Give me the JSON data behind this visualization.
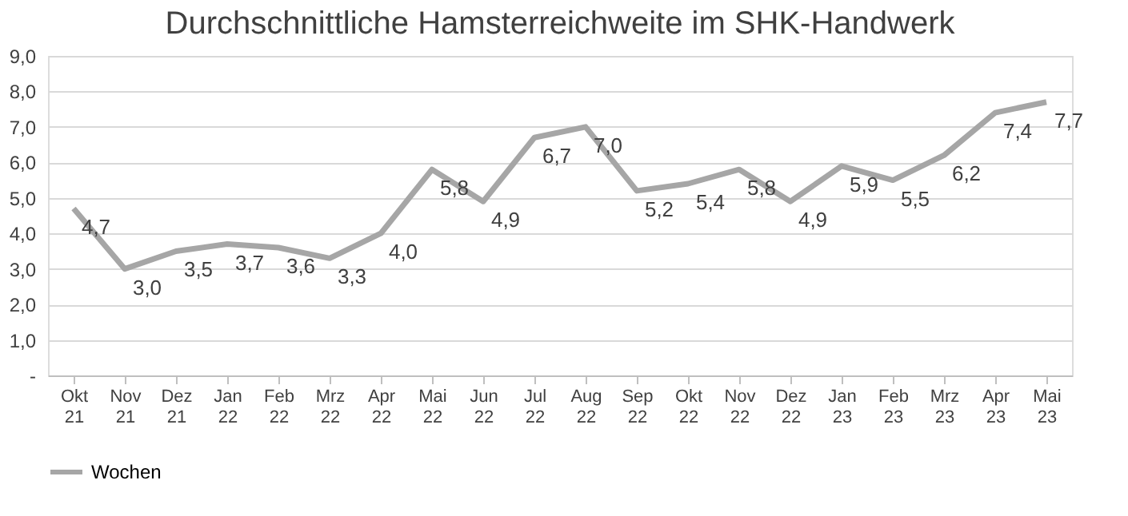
{
  "chart_data": {
    "type": "line",
    "title": "Durchschnittliche Hamsterreichweite im SHK-Handwerk",
    "categories": [
      "Okt 21",
      "Nov 21",
      "Dez 21",
      "Jan 22",
      "Feb 22",
      "Mrz 22",
      "Apr 22",
      "Mai 22",
      "Jun 22",
      "Jul 22",
      "Aug 22",
      "Sep 22",
      "Okt 22",
      "Nov 22",
      "Dez 22",
      "Jan 23",
      "Feb 23",
      "Mrz 23",
      "Apr 23",
      "Mai 23"
    ],
    "series": [
      {
        "name": "Wochen",
        "color": "#a6a6a6",
        "values": [
          4.7,
          3.0,
          3.5,
          3.7,
          3.6,
          3.3,
          4.0,
          5.8,
          4.9,
          6.7,
          7.0,
          5.2,
          5.4,
          5.8,
          4.9,
          5.9,
          5.5,
          6.2,
          7.4,
          7.7
        ],
        "value_labels": [
          "4,7",
          "3,0",
          "3,5",
          "3,7",
          "3,6",
          "3,3",
          "4,0",
          "5,8",
          "4,9",
          "6,7",
          "7,0",
          "5,2",
          "5,4",
          "5,8",
          "4,9",
          "5,9",
          "5,5",
          "6,2",
          "7,4",
          "7,7"
        ]
      }
    ],
    "ylim": [
      0,
      9
    ],
    "yticks": [
      {
        "value": 0,
        "label": "-"
      },
      {
        "value": 1,
        "label": "1,0"
      },
      {
        "value": 2,
        "label": "2,0"
      },
      {
        "value": 3,
        "label": "3,0"
      },
      {
        "value": 4,
        "label": "4,0"
      },
      {
        "value": 5,
        "label": "5,0"
      },
      {
        "value": 6,
        "label": "6,0"
      },
      {
        "value": 7,
        "label": "7,0"
      },
      {
        "value": 8,
        "label": "8,0"
      },
      {
        "value": 9,
        "label": "9,0"
      }
    ],
    "grid": "y",
    "legend": "bottom",
    "marker": "none",
    "line_style": "solid"
  }
}
